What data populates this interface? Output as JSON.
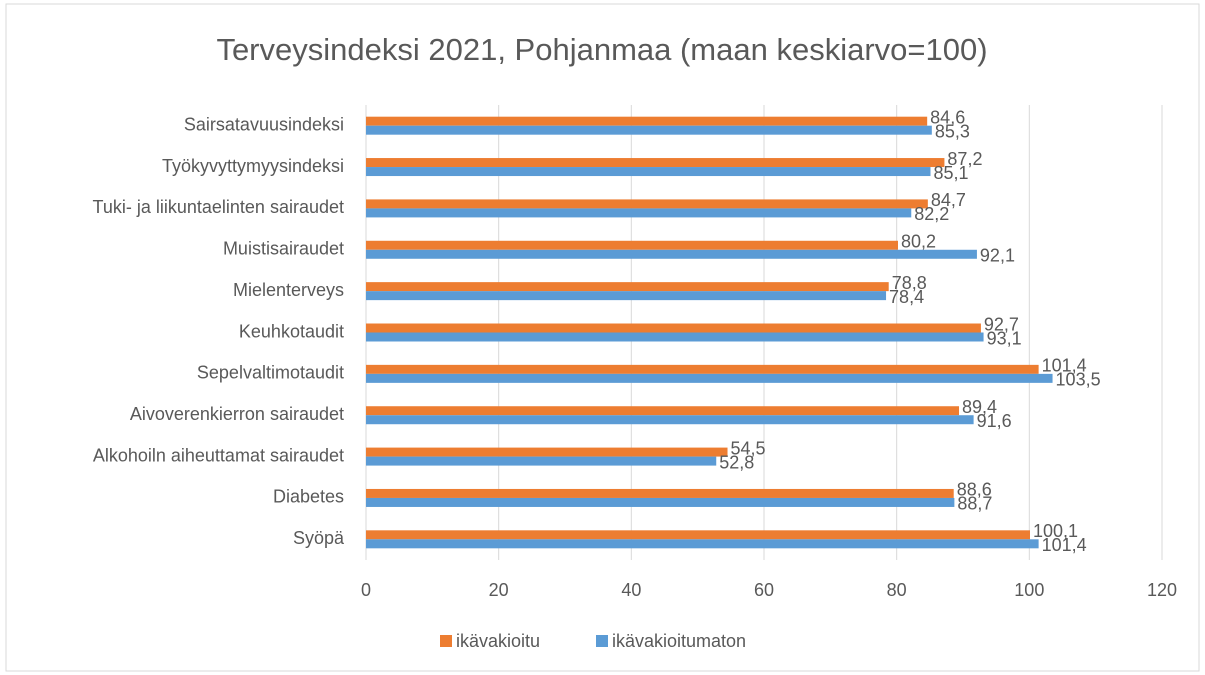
{
  "chart_data": {
    "type": "barh",
    "title": "Terveysindeksi 2021, Pohjanmaa (maan keskiarvo=100)",
    "categories": [
      "Sairsatavuusindeksi",
      "Työkyvyttymyysindeksi",
      "Tuki- ja liikuntaelinten sairaudet",
      "Muistisairaudet",
      "Mielenterveys",
      "Keuhkotaudit",
      "Sepelvaltimotaudit",
      "Aivoverenkierron sairaudet",
      "Alkohoiln aiheuttamat sairaudet",
      "Diabetes",
      "Syöpä"
    ],
    "series": [
      {
        "name": "ikävakioitu",
        "color": "#ed7d31",
        "values": [
          84.6,
          87.2,
          84.7,
          80.2,
          78.8,
          92.7,
          101.4,
          89.4,
          54.5,
          88.6,
          100.1
        ],
        "value_labels": [
          "84,6",
          "87,2",
          "84,7",
          "80,2",
          "78,8",
          "92,7",
          "101,4",
          "89,4",
          "54,5",
          "88,6",
          "100,1"
        ]
      },
      {
        "name": "ikävakioitumaton",
        "color": "#5b9bd5",
        "values": [
          85.3,
          85.1,
          82.2,
          92.1,
          78.4,
          93.1,
          103.5,
          91.6,
          52.8,
          88.7,
          101.4
        ],
        "value_labels": [
          "85,3",
          "85,1",
          "82,2",
          "92,1",
          "78,4",
          "93,1",
          "103,5",
          "91,6",
          "52,8",
          "88,7",
          "101,4"
        ]
      }
    ],
    "xlim": [
      0,
      120
    ],
    "xticks": [
      0,
      20,
      40,
      60,
      80,
      100,
      120
    ],
    "grid": true,
    "legend": "bottom"
  }
}
